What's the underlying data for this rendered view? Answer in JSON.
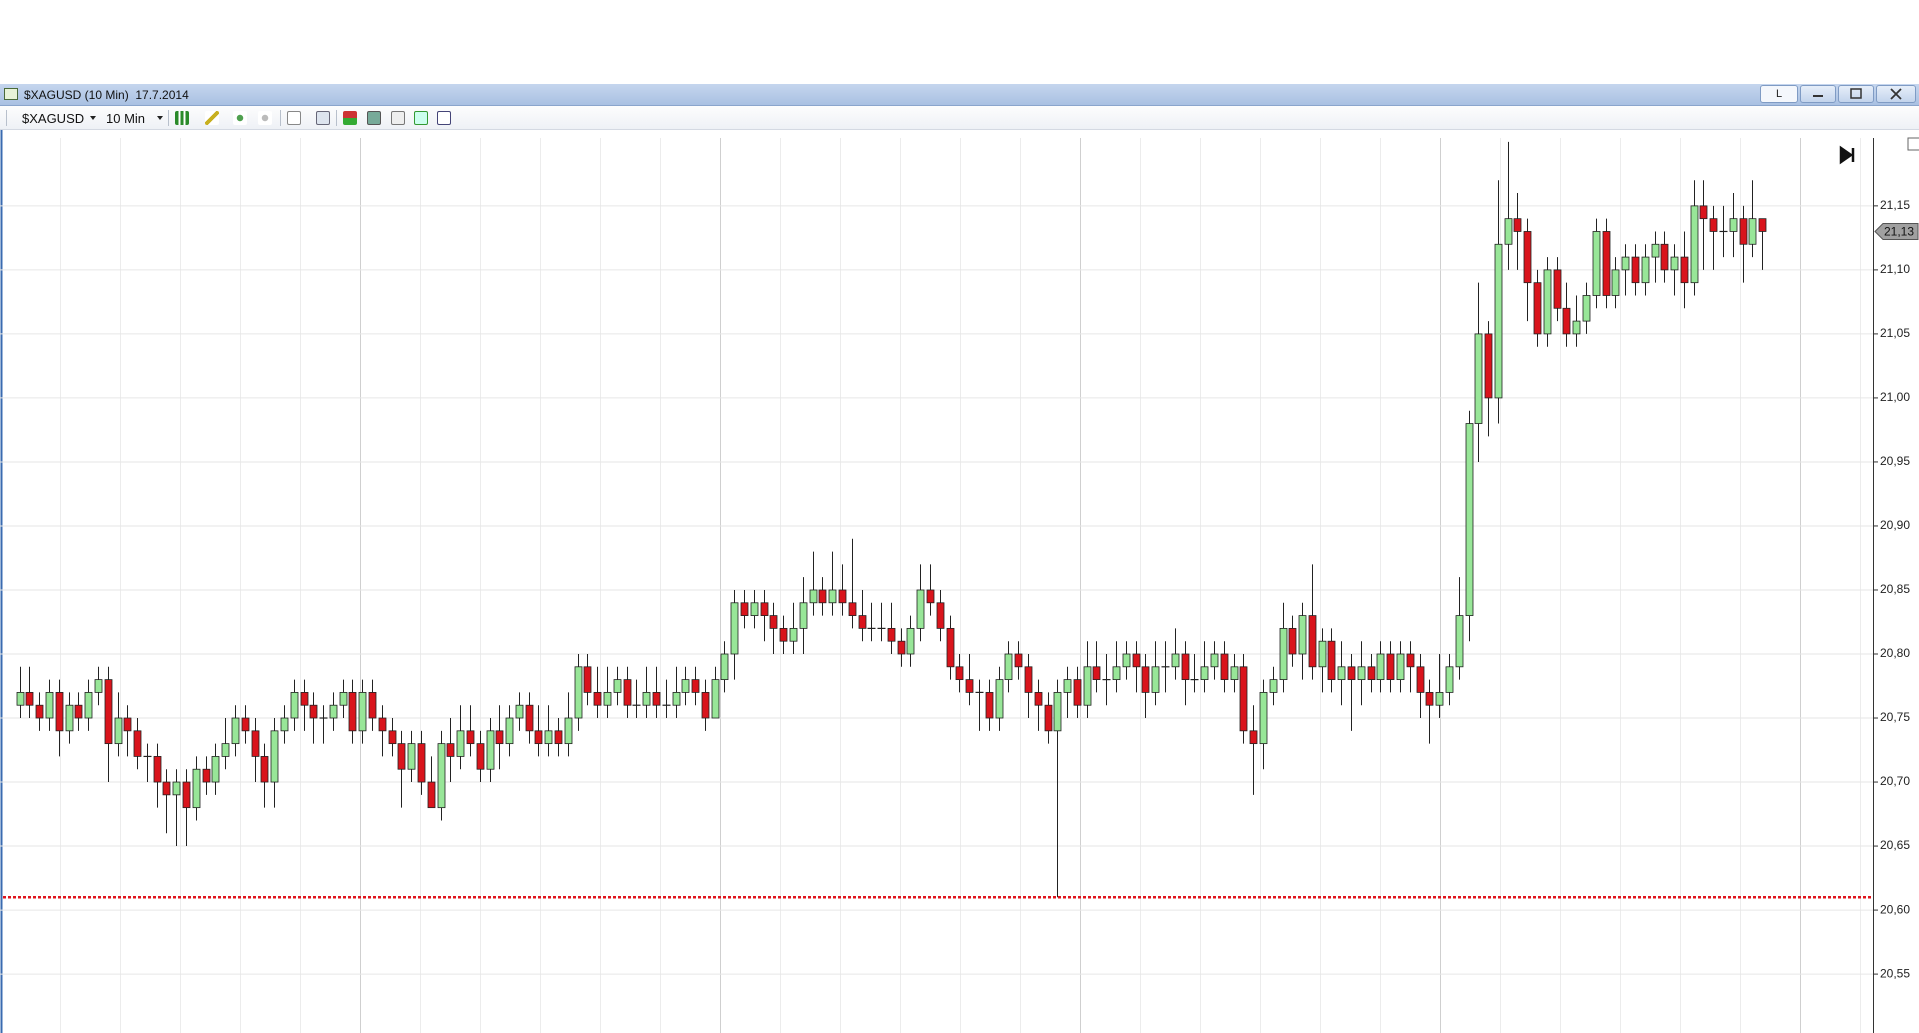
{
  "window": {
    "title": "$XAGUSD (10 Min)  17.7.2014",
    "button": "L"
  },
  "toolbar": {
    "symbol": "$XAGUSD",
    "interval": "10 Min"
  },
  "chart_data": {
    "type": "candlestick",
    "up_color": "#98e698",
    "down_color": "#d9141c",
    "ylim": [
      20.504,
      21.203
    ],
    "yticks": [
      {
        "value": 20.55,
        "label": "20,55"
      },
      {
        "value": 20.6,
        "label": "20,60"
      },
      {
        "value": 20.65,
        "label": "20,65"
      },
      {
        "value": 20.7,
        "label": "20,70"
      },
      {
        "value": 20.75,
        "label": "20,75"
      },
      {
        "value": 20.8,
        "label": "20,80"
      },
      {
        "value": 20.85,
        "label": "20,85"
      },
      {
        "value": 20.9,
        "label": "20,90"
      },
      {
        "value": 20.95,
        "label": "20,95"
      },
      {
        "value": 21.0,
        "label": "21,00"
      },
      {
        "value": 21.05,
        "label": "21,05"
      },
      {
        "value": 21.1,
        "label": "21,10"
      },
      {
        "value": 21.15,
        "label": "21,15"
      }
    ],
    "grid": true,
    "reference_line": {
      "value": 20.61,
      "color": "#e0141c"
    },
    "last_price": {
      "value": 21.13,
      "label": "21,13"
    },
    "open": [
      20.76,
      20.77,
      20.76,
      20.75,
      20.77,
      20.74,
      20.76,
      20.75,
      20.77,
      20.78,
      20.73,
      20.75,
      20.74,
      20.72,
      20.72,
      20.7,
      20.69,
      20.7,
      20.68,
      20.71,
      20.7,
      20.72,
      20.73,
      20.75,
      20.74,
      20.72,
      20.7,
      20.74,
      20.75,
      20.77,
      20.76,
      20.75,
      20.75,
      20.76,
      20.77,
      20.74,
      20.77,
      20.75,
      20.74,
      20.73,
      20.71,
      20.73,
      20.7,
      20.68,
      20.73,
      20.72,
      20.74,
      20.73,
      20.71,
      20.74,
      20.73,
      20.75,
      20.76,
      20.74,
      20.73,
      20.74,
      20.73,
      20.75,
      20.79,
      20.77,
      20.76,
      20.77,
      20.78,
      20.76,
      20.76,
      20.77,
      20.76,
      20.76,
      20.77,
      20.78,
      20.77,
      20.75,
      20.78,
      20.8,
      20.84,
      20.83,
      20.84,
      20.83,
      20.82,
      20.81,
      20.82,
      20.84,
      20.85,
      20.84,
      20.85,
      20.84,
      20.83,
      20.82,
      20.82,
      20.82,
      20.81,
      20.8,
      20.82,
      20.85,
      20.84,
      20.82,
      20.79,
      20.78,
      20.77,
      20.77,
      20.75,
      20.78,
      20.8,
      20.79,
      20.77,
      20.76,
      20.74,
      20.77,
      20.78,
      20.76,
      20.79,
      20.78,
      20.78,
      20.79,
      20.8,
      20.79,
      20.77,
      20.79,
      20.79,
      20.8,
      20.78,
      20.78,
      20.79,
      20.8,
      20.78,
      20.79,
      20.74,
      20.73,
      20.77,
      20.78,
      20.82,
      20.8,
      20.83,
      20.79,
      20.81,
      20.78,
      20.79,
      20.78,
      20.79,
      20.78,
      20.8,
      20.78,
      20.8,
      20.79,
      20.77,
      20.76,
      20.77,
      20.79,
      20.83,
      20.98,
      21.05,
      21.0,
      21.12,
      21.14,
      21.13,
      21.09,
      21.05,
      21.1,
      21.07,
      21.05,
      21.06,
      21.08,
      21.13,
      21.08,
      21.1,
      21.11,
      21.09,
      21.11,
      21.12,
      21.1,
      21.11,
      21.09,
      21.15,
      21.14,
      21.13,
      21.13,
      21.14,
      21.12,
      21.14
    ],
    "high": [
      20.79,
      20.79,
      20.77,
      20.78,
      20.78,
      20.77,
      20.77,
      20.78,
      20.79,
      20.79,
      20.77,
      20.76,
      20.75,
      20.73,
      20.73,
      20.71,
      20.71,
      20.71,
      20.72,
      20.72,
      20.73,
      20.75,
      20.76,
      20.76,
      20.75,
      20.73,
      20.75,
      20.76,
      20.78,
      20.78,
      20.77,
      20.76,
      20.77,
      20.78,
      20.78,
      20.78,
      20.78,
      20.76,
      20.75,
      20.74,
      20.74,
      20.74,
      20.72,
      20.74,
      20.75,
      20.76,
      20.76,
      20.74,
      20.75,
      20.76,
      20.76,
      20.77,
      20.77,
      20.76,
      20.76,
      20.75,
      20.77,
      20.8,
      20.8,
      20.79,
      20.79,
      20.79,
      20.79,
      20.78,
      20.79,
      20.79,
      20.78,
      20.79,
      20.79,
      20.79,
      20.78,
      20.79,
      20.81,
      20.85,
      20.85,
      20.85,
      20.85,
      20.84,
      20.83,
      20.84,
      20.86,
      20.88,
      20.86,
      20.88,
      20.87,
      20.89,
      20.85,
      20.84,
      20.84,
      20.84,
      20.82,
      20.83,
      20.87,
      20.87,
      20.85,
      20.83,
      20.8,
      20.8,
      20.78,
      20.78,
      20.79,
      20.81,
      20.81,
      20.8,
      20.78,
      20.77,
      20.78,
      20.79,
      20.79,
      20.81,
      20.81,
      20.8,
      20.81,
      20.81,
      20.81,
      20.8,
      20.81,
      20.81,
      20.82,
      20.81,
      20.8,
      20.81,
      20.81,
      20.81,
      20.8,
      20.8,
      20.76,
      20.78,
      20.79,
      20.84,
      20.83,
      20.84,
      20.87,
      20.82,
      20.82,
      20.81,
      20.8,
      20.81,
      20.8,
      20.81,
      20.81,
      20.81,
      20.81,
      20.8,
      20.78,
      20.8,
      20.8,
      20.86,
      20.99,
      21.09,
      21.06,
      21.17,
      21.2,
      21.16,
      21.14,
      21.1,
      21.11,
      21.11,
      21.09,
      21.08,
      21.09,
      21.14,
      21.14,
      21.11,
      21.12,
      21.12,
      21.12,
      21.13,
      21.13,
      21.12,
      21.13,
      21.17,
      21.17,
      21.15,
      21.15,
      21.16,
      21.15,
      21.17,
      21.14
    ],
    "low": [
      20.75,
      20.75,
      20.74,
      20.74,
      20.72,
      20.73,
      20.74,
      20.74,
      20.76,
      20.7,
      20.72,
      20.72,
      20.71,
      20.7,
      20.68,
      20.66,
      20.65,
      20.65,
      20.67,
      20.69,
      20.69,
      20.71,
      20.72,
      20.73,
      20.7,
      20.68,
      20.68,
      20.73,
      20.74,
      20.74,
      20.73,
      20.73,
      20.74,
      20.75,
      20.73,
      20.73,
      20.74,
      20.72,
      20.72,
      20.68,
      20.7,
      20.69,
      20.68,
      20.67,
      20.7,
      20.71,
      20.72,
      20.7,
      20.7,
      20.71,
      20.72,
      20.74,
      20.73,
      20.72,
      20.72,
      20.72,
      20.72,
      20.74,
      20.76,
      20.75,
      20.75,
      20.76,
      20.75,
      20.75,
      20.75,
      20.75,
      20.75,
      20.75,
      20.76,
      20.76,
      20.74,
      20.75,
      20.77,
      20.78,
      20.82,
      20.82,
      20.81,
      20.8,
      20.8,
      20.8,
      20.8,
      20.83,
      20.83,
      20.83,
      20.83,
      20.82,
      20.81,
      20.81,
      20.81,
      20.8,
      20.79,
      20.79,
      20.81,
      20.83,
      20.81,
      20.78,
      20.77,
      20.76,
      20.74,
      20.74,
      20.74,
      20.77,
      20.78,
      20.75,
      20.74,
      20.73,
      20.61,
      20.75,
      20.75,
      20.75,
      20.77,
      20.76,
      20.77,
      20.78,
      20.77,
      20.75,
      20.76,
      20.77,
      20.78,
      20.76,
      20.77,
      20.77,
      20.78,
      20.77,
      20.77,
      20.73,
      20.69,
      20.71,
      20.76,
      20.77,
      20.79,
      20.78,
      20.78,
      20.77,
      20.77,
      20.76,
      20.74,
      20.76,
      20.77,
      20.77,
      20.77,
      20.77,
      20.77,
      20.75,
      20.73,
      20.75,
      20.76,
      20.78,
      20.81,
      20.95,
      20.97,
      20.98,
      21.1,
      21.1,
      21.06,
      21.04,
      21.04,
      21.06,
      21.04,
      21.04,
      21.05,
      21.07,
      21.07,
      21.07,
      21.08,
      21.08,
      21.08,
      21.09,
      21.09,
      21.08,
      21.07,
      21.08,
      21.1,
      21.1,
      21.11,
      21.11,
      21.09,
      21.11,
      21.1
    ],
    "close": [
      20.77,
      20.76,
      20.75,
      20.77,
      20.74,
      20.76,
      20.75,
      20.77,
      20.78,
      20.73,
      20.75,
      20.74,
      20.72,
      20.72,
      20.7,
      20.69,
      20.7,
      20.68,
      20.71,
      20.7,
      20.72,
      20.73,
      20.75,
      20.74,
      20.72,
      20.7,
      20.74,
      20.75,
      20.77,
      20.76,
      20.75,
      20.75,
      20.76,
      20.77,
      20.74,
      20.77,
      20.75,
      20.74,
      20.73,
      20.71,
      20.73,
      20.7,
      20.68,
      20.73,
      20.72,
      20.74,
      20.73,
      20.71,
      20.74,
      20.73,
      20.75,
      20.76,
      20.74,
      20.73,
      20.74,
      20.73,
      20.75,
      20.79,
      20.77,
      20.76,
      20.77,
      20.78,
      20.76,
      20.76,
      20.77,
      20.76,
      20.76,
      20.77,
      20.78,
      20.77,
      20.75,
      20.78,
      20.8,
      20.84,
      20.83,
      20.84,
      20.83,
      20.82,
      20.81,
      20.82,
      20.84,
      20.85,
      20.84,
      20.85,
      20.84,
      20.83,
      20.82,
      20.82,
      20.82,
      20.81,
      20.8,
      20.82,
      20.85,
      20.84,
      20.82,
      20.79,
      20.78,
      20.77,
      20.77,
      20.75,
      20.78,
      20.8,
      20.79,
      20.77,
      20.76,
      20.74,
      20.77,
      20.78,
      20.76,
      20.79,
      20.78,
      20.78,
      20.79,
      20.8,
      20.79,
      20.77,
      20.79,
      20.79,
      20.8,
      20.78,
      20.78,
      20.79,
      20.8,
      20.78,
      20.79,
      20.74,
      20.73,
      20.77,
      20.78,
      20.82,
      20.8,
      20.83,
      20.79,
      20.81,
      20.78,
      20.79,
      20.78,
      20.79,
      20.78,
      20.8,
      20.78,
      20.8,
      20.79,
      20.77,
      20.76,
      20.77,
      20.79,
      20.83,
      20.98,
      21.05,
      21.0,
      21.12,
      21.14,
      21.13,
      21.09,
      21.05,
      21.1,
      21.07,
      21.05,
      21.06,
      21.08,
      21.13,
      21.08,
      21.1,
      21.11,
      21.09,
      21.11,
      21.12,
      21.1,
      21.11,
      21.09,
      21.15,
      21.14,
      21.13,
      21.13,
      21.14,
      21.12,
      21.14,
      21.13
    ]
  }
}
